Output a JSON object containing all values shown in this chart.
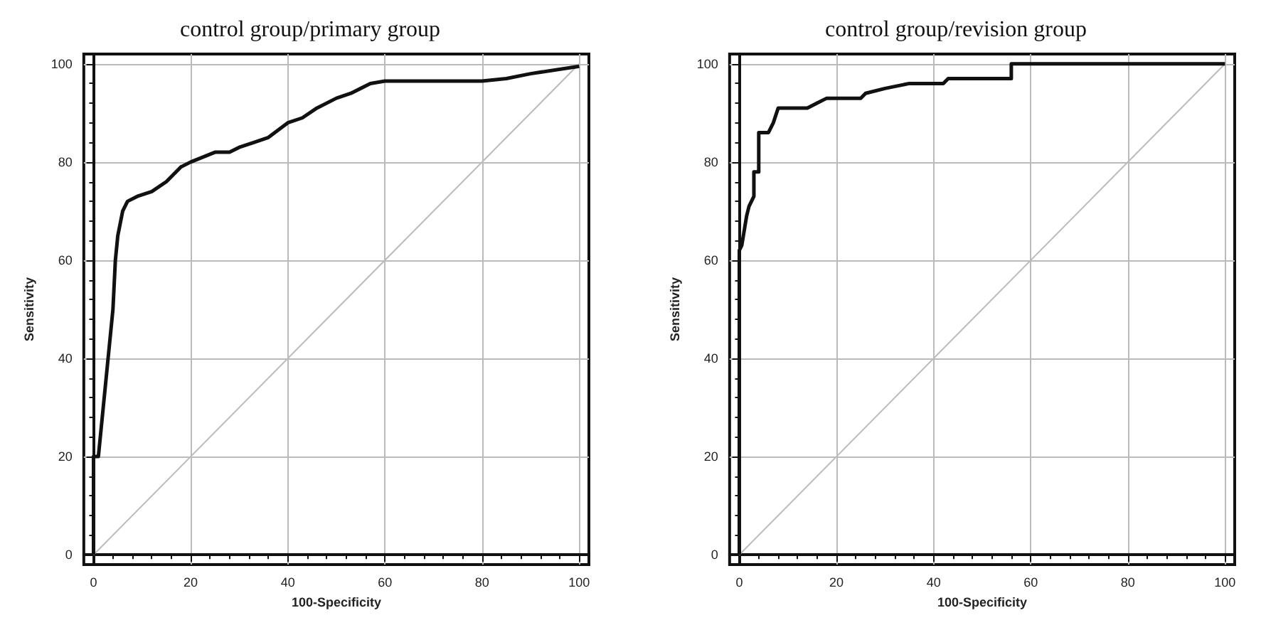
{
  "chart_data": [
    {
      "type": "line",
      "title": "control group/primary group",
      "xlabel": "100-Specificity",
      "ylabel": "Sensitivity",
      "xlim": [
        -2,
        102
      ],
      "ylim": [
        -2,
        102
      ],
      "xticks": [
        0,
        20,
        40,
        60,
        80,
        100
      ],
      "yticks": [
        0,
        20,
        40,
        60,
        80,
        100
      ],
      "grid": true,
      "marker": "none",
      "series": [
        {
          "color": "#111111",
          "x": [
            0,
            0,
            1,
            2,
            3,
            4,
            4.5,
            5,
            6,
            7,
            9,
            12,
            15,
            18,
            20,
            25,
            28,
            30,
            33,
            36,
            40,
            43,
            46,
            50,
            53,
            57,
            60,
            80,
            85,
            90,
            100
          ],
          "values": [
            0,
            20,
            20,
            30,
            40,
            50,
            60,
            65,
            70,
            72,
            73,
            74,
            76,
            79,
            80,
            82,
            82,
            83,
            84,
            85,
            88,
            89,
            91,
            93,
            94,
            96,
            96.5,
            96.5,
            97,
            98,
            99.5
          ]
        },
        {
          "color": "#bbbbbb",
          "x": [
            0,
            100
          ],
          "values": [
            0,
            100
          ]
        }
      ]
    },
    {
      "type": "line",
      "title": "control group/revision group",
      "xlabel": "100-Specificity",
      "ylabel": "Sensitivity",
      "xlim": [
        -2,
        102
      ],
      "ylim": [
        -2,
        102
      ],
      "xticks": [
        0,
        20,
        40,
        60,
        80,
        100
      ],
      "yticks": [
        0,
        20,
        40,
        60,
        80,
        100
      ],
      "grid": true,
      "marker": "none",
      "series": [
        {
          "color": "#111111",
          "x": [
            0,
            0,
            0.5,
            1,
            1.5,
            2,
            3,
            3,
            4,
            4,
            6,
            7,
            8,
            14,
            16,
            18,
            25,
            26,
            30,
            35,
            42,
            43,
            56,
            56,
            100
          ],
          "values": [
            0,
            62,
            63,
            66,
            69,
            71,
            73,
            78,
            78,
            86,
            86,
            88,
            91,
            91,
            92,
            93,
            93,
            94,
            95,
            96,
            96,
            97,
            97,
            100,
            100
          ]
        },
        {
          "color": "#bbbbbb",
          "x": [
            0,
            100
          ],
          "values": [
            0,
            100
          ]
        }
      ]
    }
  ]
}
